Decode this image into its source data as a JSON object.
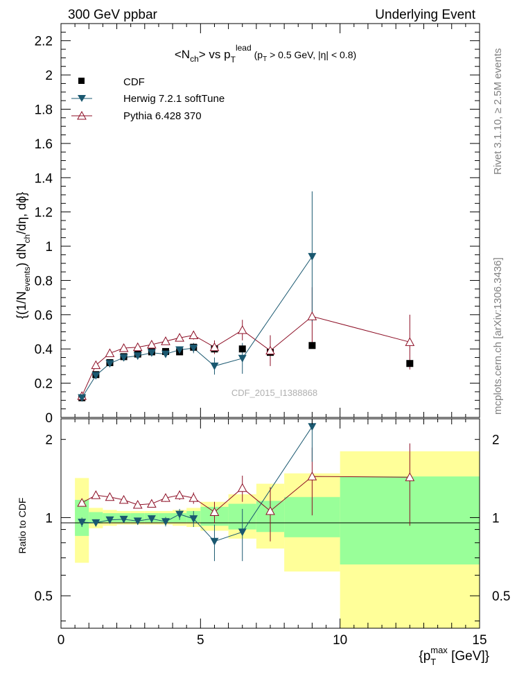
{
  "header": {
    "left": "300 GeV ppbar",
    "right": "Underlying Event"
  },
  "side": {
    "upper": "Rivet 3.1.10, ≥ 2.5M events",
    "lower": "mcplots.cern.ch [arXiv:1306.3436]"
  },
  "colors": {
    "data": "#000000",
    "herwig": "#1a5870",
    "pythia": "#8c0d24",
    "band_inner": "#99ff99",
    "band_outer": "#ffff99"
  },
  "chart_data": [
    {
      "type": "scatter",
      "title": "<N_ch> vs p_T^lead (p_T > 0.5 GeV, |η| < 0.8)",
      "title_parts": {
        "n": "<N",
        "ch": "ch",
        "vs": "> vs p",
        "t": "T",
        "lead": "lead",
        "cut1": "(p",
        "cut2": " > 0.5 GeV, |η| < 0.8)"
      },
      "ylabel_parts": {
        "a": "{(1/N",
        "b": "events",
        "c": ") dN",
        "d": "ch",
        "e": "/dη, dϕ}"
      },
      "xlim": [
        0,
        15
      ],
      "ylim": [
        0,
        2.3
      ],
      "yticks": [
        "0",
        "0.2",
        "0.4",
        "0.6",
        "0.8",
        "1",
        "1.2",
        "1.4",
        "1.6",
        "1.8",
        "2",
        "2.2"
      ],
      "watermark": "CDF_2015_I1388868",
      "legend_position": "top-left",
      "legend": [
        "CDF",
        "Herwig 7.2.1 softTune",
        "Pythia 6.428 370"
      ],
      "series": [
        {
          "name": "CDF",
          "x": [
            0.75,
            1.25,
            1.75,
            2.25,
            2.75,
            3.25,
            3.75,
            4.25,
            4.75,
            5.5,
            6.5,
            7.5,
            9.0,
            12.5
          ],
          "y": [
            0.115,
            0.25,
            0.32,
            0.355,
            0.37,
            0.383,
            0.385,
            0.383,
            0.41,
            0.4,
            0.4,
            0.38,
            0.42,
            0.315
          ]
        },
        {
          "name": "Herwig 7.2.1 softTune",
          "x": [
            0.75,
            1.25,
            1.75,
            2.25,
            2.75,
            3.25,
            3.75,
            4.25,
            4.75,
            5.5,
            6.5,
            9.0
          ],
          "y": [
            0.115,
            0.245,
            0.315,
            0.35,
            0.36,
            0.378,
            0.37,
            0.395,
            0.405,
            0.3,
            0.345,
            0.94
          ],
          "err": [
            0.005,
            0.008,
            0.01,
            0.01,
            0.01,
            0.012,
            0.015,
            0.02,
            0.03,
            0.05,
            0.09,
            0.38
          ]
        },
        {
          "name": "Pythia 6.428 370",
          "x": [
            0.75,
            1.25,
            1.75,
            2.25,
            2.75,
            3.25,
            3.75,
            4.25,
            4.75,
            5.5,
            6.5,
            7.5,
            9.0,
            12.5
          ],
          "y": [
            0.125,
            0.305,
            0.375,
            0.405,
            0.41,
            0.425,
            0.445,
            0.465,
            0.48,
            0.41,
            0.51,
            0.39,
            0.59,
            0.44
          ],
          "err": [
            0.005,
            0.01,
            0.01,
            0.01,
            0.012,
            0.013,
            0.015,
            0.02,
            0.025,
            0.04,
            0.06,
            0.09,
            0.17,
            0.16
          ]
        }
      ]
    },
    {
      "type": "scatter",
      "ylabel": "Ratio to CDF",
      "yscale": "log",
      "xlim": [
        0,
        15
      ],
      "ylim": [
        0.375,
        2.4
      ],
      "xlabel_parts": {
        "a": "{p",
        "b": "T",
        "sup": "max",
        "c": " [GeV]}"
      },
      "xticks": [
        "0",
        "5",
        "10",
        "15"
      ],
      "yticks": [
        "0.5",
        "1",
        "2"
      ],
      "bands": {
        "edges": [
          0.5,
          1.0,
          1.5,
          2.0,
          2.5,
          3.0,
          3.5,
          4.0,
          4.5,
          5.0,
          6.0,
          7.0,
          8.0,
          10.0,
          15.0
        ],
        "inner_low": [
          0.85,
          0.95,
          0.96,
          0.96,
          0.96,
          0.96,
          0.96,
          0.96,
          0.96,
          0.93,
          0.9,
          0.88,
          0.84,
          0.66
        ],
        "inner_high": [
          1.17,
          1.05,
          1.04,
          1.04,
          1.04,
          1.04,
          1.04,
          1.04,
          1.06,
          1.1,
          1.13,
          1.16,
          1.2,
          1.44
        ],
        "outer_low": [
          0.67,
          0.91,
          0.93,
          0.94,
          0.94,
          0.94,
          0.94,
          0.93,
          0.92,
          0.89,
          0.83,
          0.76,
          0.62,
          0.33
        ],
        "outer_high": [
          1.42,
          1.09,
          1.07,
          1.06,
          1.06,
          1.06,
          1.06,
          1.07,
          1.09,
          1.15,
          1.23,
          1.35,
          1.48,
          1.8
        ]
      },
      "series": [
        {
          "name": "Herwig 7.2.1 softTune",
          "x": [
            0.75,
            1.25,
            1.75,
            2.25,
            2.75,
            3.25,
            3.75,
            4.25,
            4.75,
            5.5,
            6.5,
            9.0
          ],
          "y": [
            0.96,
            0.955,
            0.98,
            0.985,
            0.97,
            0.99,
            0.965,
            1.03,
            0.99,
            0.81,
            0.88,
            2.24
          ],
          "err": [
            0.04,
            0.03,
            0.02,
            0.02,
            0.02,
            0.03,
            0.04,
            0.05,
            0.07,
            0.13,
            0.2,
            0.6
          ]
        },
        {
          "name": "Pythia 6.428 370",
          "x": [
            0.75,
            1.25,
            1.75,
            2.25,
            2.75,
            3.25,
            3.75,
            4.25,
            4.75,
            5.5,
            6.5,
            7.5,
            9.0,
            12.5
          ],
          "y": [
            1.14,
            1.22,
            1.2,
            1.17,
            1.12,
            1.13,
            1.19,
            1.22,
            1.19,
            1.05,
            1.3,
            1.06,
            1.44,
            1.43
          ],
          "err": [
            0.03,
            0.03,
            0.03,
            0.03,
            0.03,
            0.03,
            0.04,
            0.05,
            0.06,
            0.1,
            0.15,
            0.25,
            0.42,
            0.5
          ]
        }
      ]
    }
  ]
}
